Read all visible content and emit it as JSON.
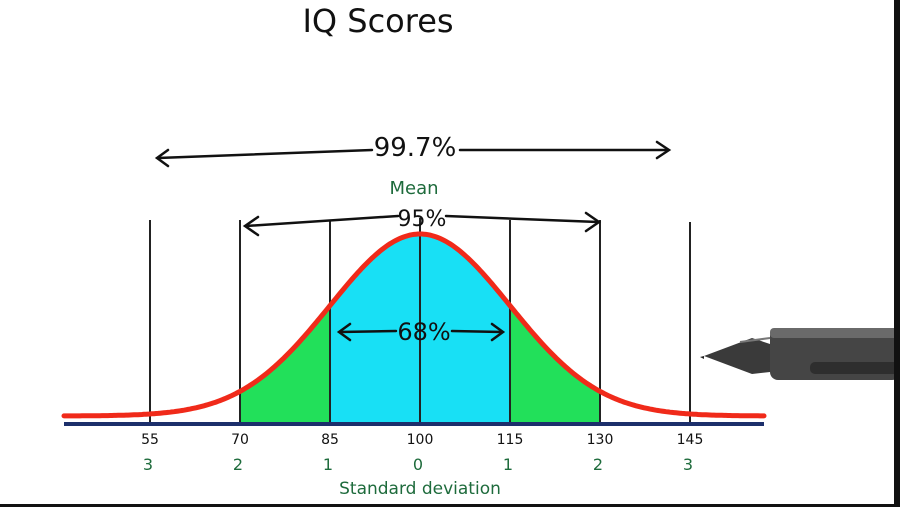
{
  "title": "IQ Scores",
  "annotations": {
    "span_997": "99.7%",
    "span_95": "95%",
    "span_68": "68%",
    "mean_label": "Mean",
    "axis_label": "Standard deviation"
  },
  "scores": [
    "55",
    "70",
    "85",
    "100",
    "115",
    "130",
    "145"
  ],
  "sd_labels": [
    "3",
    "2",
    "1",
    "0",
    "1",
    "2",
    "3"
  ],
  "colors": {
    "curve": "#f02a1a",
    "center_fill": "#18e0f5",
    "side_fill": "#22e05a",
    "baseline": "#1c2f6b",
    "label_green": "#1e6b3c",
    "ink": "#111111"
  },
  "pen": {
    "icon": "pen-icon"
  }
}
